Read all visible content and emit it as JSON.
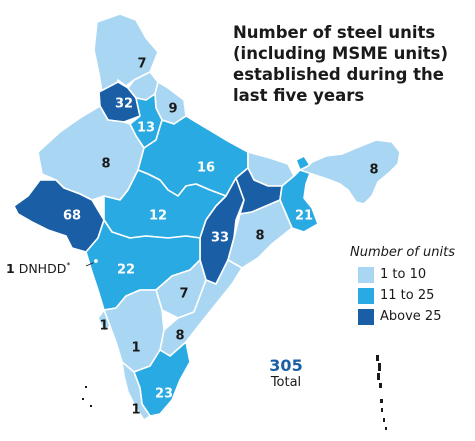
{
  "title": "Number of steel units (including MSME units) established during the last five years",
  "legend": {
    "title": "Number of units",
    "items": [
      {
        "label": "1 to 10",
        "color": "#a9d6f2"
      },
      {
        "label": "11 to 25",
        "color": "#2aaae2"
      },
      {
        "label": "Above 25",
        "color": "#1a5fa6"
      }
    ]
  },
  "total": {
    "value": "305",
    "label": "Total"
  },
  "callout": {
    "value": "1",
    "name": "DNHDD",
    "mark": "*"
  },
  "regions": [
    {
      "name": "jammu-kashmir",
      "value": "7",
      "class": "low"
    },
    {
      "name": "punjab",
      "value": "32",
      "class": "high"
    },
    {
      "name": "himachal-pradesh",
      "value": "",
      "class": "low"
    },
    {
      "name": "uttarakhand",
      "value": "9",
      "class": "low"
    },
    {
      "name": "haryana",
      "value": "13",
      "class": "mid"
    },
    {
      "name": "rajasthan",
      "value": "8",
      "class": "low"
    },
    {
      "name": "uttar-pradesh",
      "value": "16",
      "class": "mid"
    },
    {
      "name": "bihar",
      "value": "",
      "class": "low"
    },
    {
      "name": "gujarat",
      "value": "68",
      "class": "high"
    },
    {
      "name": "madhya-pradesh",
      "value": "12",
      "class": "mid"
    },
    {
      "name": "chhattisgarh",
      "value": "33",
      "class": "high"
    },
    {
      "name": "jharkhand",
      "value": "",
      "class": "high"
    },
    {
      "name": "west-bengal",
      "value": "21",
      "class": "mid"
    },
    {
      "name": "odisha",
      "value": "8",
      "class": "low"
    },
    {
      "name": "maharashtra",
      "value": "22",
      "class": "mid"
    },
    {
      "name": "telangana",
      "value": "7",
      "class": "low"
    },
    {
      "name": "andhra-pradesh",
      "value": "8",
      "class": "low"
    },
    {
      "name": "karnataka",
      "value": "1",
      "class": "low"
    },
    {
      "name": "goa",
      "value": "1",
      "class": "low"
    },
    {
      "name": "tamil-nadu",
      "value": "23",
      "class": "mid"
    },
    {
      "name": "kerala",
      "value": "1",
      "class": "low"
    },
    {
      "name": "northeast",
      "value": "8",
      "class": "low"
    }
  ]
}
